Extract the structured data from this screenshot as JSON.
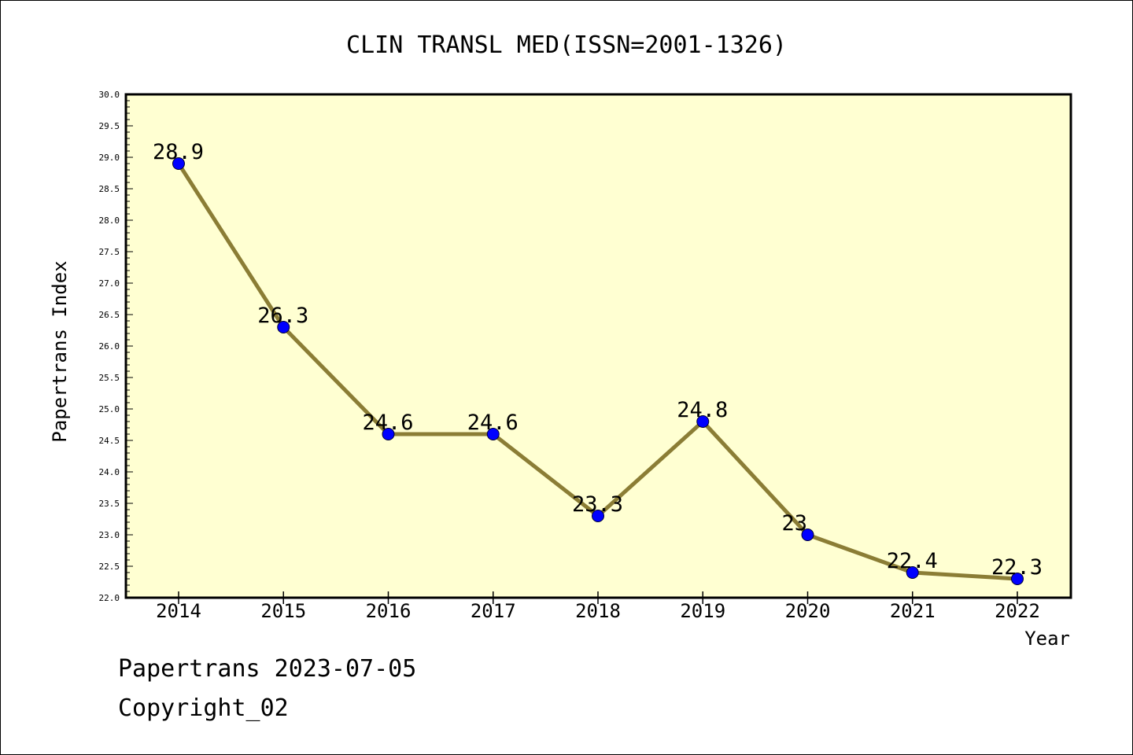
{
  "chart_data": {
    "type": "line",
    "title": "CLIN TRANSL MED(ISSN=2001-1326)",
    "xlabel": "Year",
    "ylabel": "Papertrans Index",
    "categories": [
      "2014",
      "2015",
      "2016",
      "2017",
      "2018",
      "2019",
      "2020",
      "2021",
      "2022"
    ],
    "series": [
      {
        "values": [
          28.9,
          26.3,
          24.6,
          24.6,
          23.3,
          24.8,
          23.0,
          22.4,
          22.3
        ],
        "labels": [
          "28.9",
          "26.3",
          "24.6",
          "24.6",
          "23.3",
          "24.8",
          "23",
          "22.4",
          "22.3"
        ]
      }
    ],
    "ylim": [
      22.0,
      30.0
    ],
    "yticks": [
      "22.0",
      "22.5",
      "23.0",
      "23.5",
      "24.0",
      "24.5",
      "25.0",
      "25.5",
      "26.0",
      "26.5",
      "27.0",
      "27.5",
      "28.0",
      "28.5",
      "29.0",
      "29.5",
      "30.0"
    ],
    "grid": false,
    "legend": "none",
    "colors": {
      "plot_background": "#ffffd2",
      "line": "#8b7d35",
      "marker": "#0000ff"
    }
  },
  "footer": {
    "line1": "Papertrans 2023-07-05",
    "line2": "Copyright_02"
  }
}
